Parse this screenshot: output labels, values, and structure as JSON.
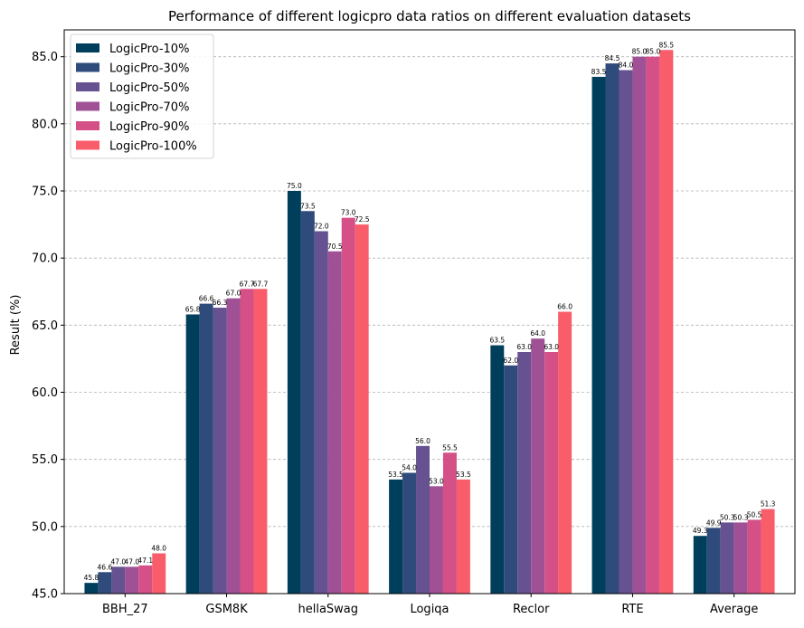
{
  "chart_data": {
    "type": "bar",
    "title": "Performance of different logicpro data ratios on different evaluation datasets",
    "xlabel": "",
    "ylabel": "Result (%)",
    "ylim": [
      45.0,
      87.0
    ],
    "yticks": [
      45.0,
      50.0,
      55.0,
      60.0,
      65.0,
      70.0,
      75.0,
      80.0,
      85.0
    ],
    "grid": "y-dashed",
    "legend_position": "top-left",
    "categories": [
      "BBH_27",
      "GSM8K",
      "hellaSwag",
      "Logiqa",
      "Reclor",
      "RTE",
      "Average"
    ],
    "series": [
      {
        "name": "LogicPro-10%",
        "color": "#003f5c",
        "values": [
          45.8,
          65.8,
          75.0,
          53.5,
          63.5,
          83.5,
          49.3
        ]
      },
      {
        "name": "LogicPro-30%",
        "color": "#2f4b7c",
        "values": [
          46.6,
          66.6,
          73.5,
          54.0,
          62.0,
          84.5,
          49.9
        ]
      },
      {
        "name": "LogicPro-50%",
        "color": "#665191",
        "values": [
          47.0,
          66.3,
          72.0,
          56.0,
          63.0,
          84.0,
          50.3
        ]
      },
      {
        "name": "LogicPro-70%",
        "color": "#a05195",
        "values": [
          47.0,
          67.0,
          70.5,
          53.0,
          64.0,
          85.0,
          50.3
        ]
      },
      {
        "name": "LogicPro-90%",
        "color": "#d45087",
        "values": [
          47.1,
          67.7,
          73.0,
          55.5,
          63.0,
          85.0,
          50.5
        ]
      },
      {
        "name": "LogicPro-100%",
        "color": "#f95d6a",
        "values": [
          48.0,
          67.7,
          72.5,
          53.5,
          66.0,
          85.5,
          51.3
        ]
      }
    ]
  }
}
